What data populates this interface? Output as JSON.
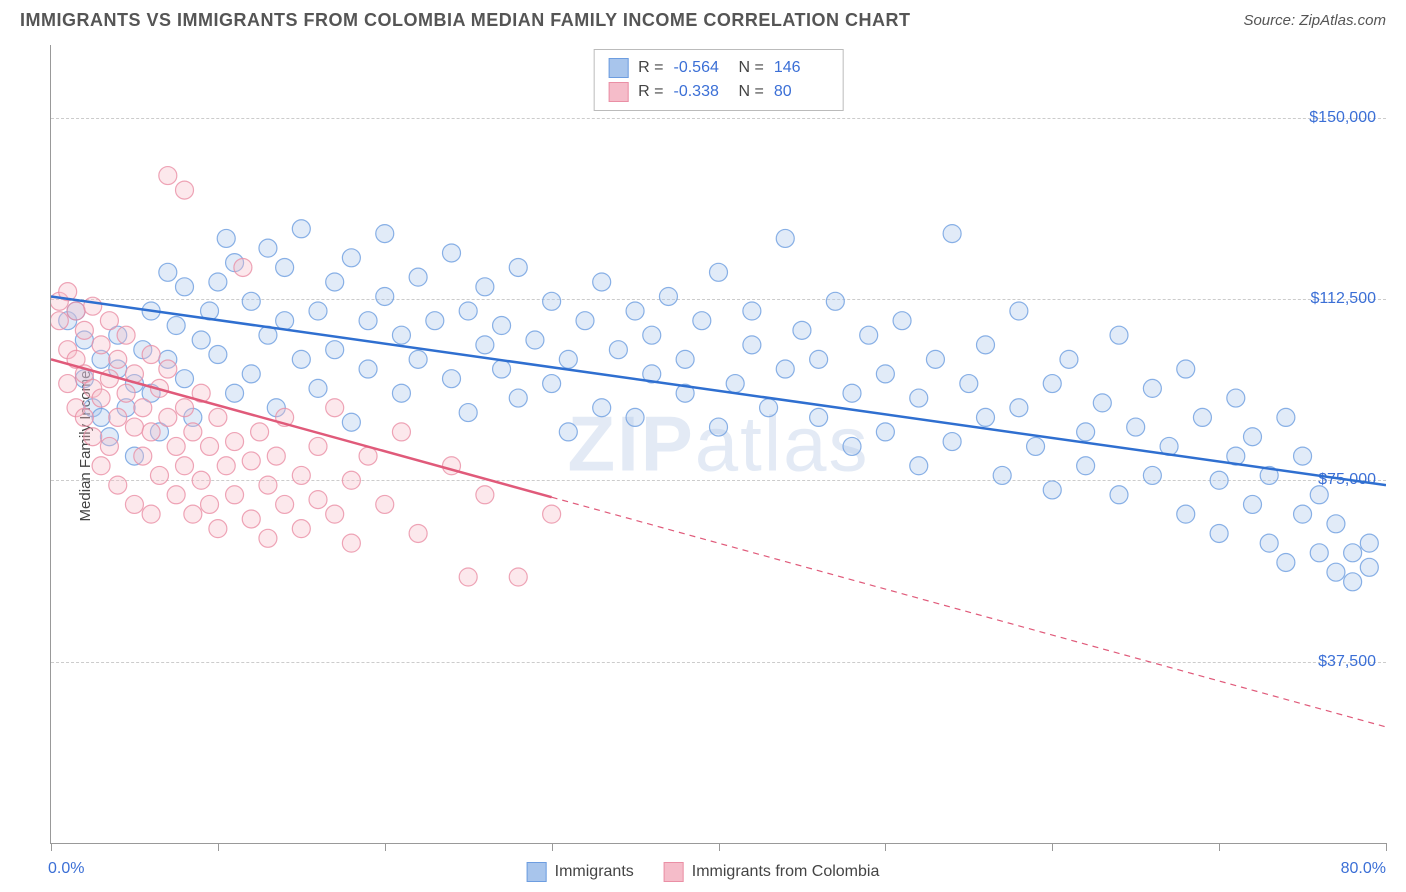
{
  "header": {
    "title": "IMMIGRANTS VS IMMIGRANTS FROM COLOMBIA MEDIAN FAMILY INCOME CORRELATION CHART",
    "source": "Source: ZipAtlas.com"
  },
  "chart": {
    "type": "scatter",
    "ylabel": "Median Family Income",
    "xlim": [
      0,
      80
    ],
    "ylim": [
      0,
      165000
    ],
    "xtick_positions": [
      0,
      10,
      20,
      30,
      40,
      50,
      60,
      70,
      80
    ],
    "xtick_labels_shown": {
      "min": "0.0%",
      "max": "80.0%"
    },
    "ytick_positions": [
      37500,
      75000,
      112500,
      150000
    ],
    "ytick_labels": [
      "$37,500",
      "$75,000",
      "$112,500",
      "$150,000"
    ],
    "grid_color": "#cccccc",
    "axis_color": "#999999",
    "background_color": "#ffffff",
    "label_color": "#3b6fd6",
    "text_color": "#555555",
    "marker_radius": 9,
    "marker_fill_opacity": 0.35,
    "marker_stroke_opacity": 0.8,
    "marker_stroke_width": 1.2,
    "line_width": 2.5,
    "series": [
      {
        "id": "immigrants",
        "label": "Immigrants",
        "color_fill": "#a8c5ec",
        "color_stroke": "#6d9de0",
        "line_color": "#2f6fd0",
        "R": "-0.564",
        "N": "146",
        "regression": {
          "x1": 0,
          "y1": 113000,
          "x2": 80,
          "y2": 74000,
          "solid_until_x": 80
        },
        "points": [
          [
            1,
            108000
          ],
          [
            1.5,
            110000
          ],
          [
            2,
            104000
          ],
          [
            2,
            96000
          ],
          [
            2.5,
            90000
          ],
          [
            3,
            88000
          ],
          [
            3,
            100000
          ],
          [
            3.5,
            84000
          ],
          [
            4,
            98000
          ],
          [
            4,
            105000
          ],
          [
            4.5,
            90000
          ],
          [
            5,
            95000
          ],
          [
            5,
            80000
          ],
          [
            5.5,
            102000
          ],
          [
            6,
            110000
          ],
          [
            6,
            93000
          ],
          [
            6.5,
            85000
          ],
          [
            7,
            118000
          ],
          [
            7,
            100000
          ],
          [
            7.5,
            107000
          ],
          [
            8,
            96000
          ],
          [
            8,
            115000
          ],
          [
            8.5,
            88000
          ],
          [
            9,
            104000
          ],
          [
            9.5,
            110000
          ],
          [
            10,
            101000
          ],
          [
            10,
            116000
          ],
          [
            10.5,
            125000
          ],
          [
            11,
            93000
          ],
          [
            11,
            120000
          ],
          [
            12,
            112000
          ],
          [
            12,
            97000
          ],
          [
            13,
            123000
          ],
          [
            13,
            105000
          ],
          [
            13.5,
            90000
          ],
          [
            14,
            108000
          ],
          [
            14,
            119000
          ],
          [
            15,
            100000
          ],
          [
            15,
            127000
          ],
          [
            16,
            110000
          ],
          [
            16,
            94000
          ],
          [
            17,
            116000
          ],
          [
            17,
            102000
          ],
          [
            18,
            121000
          ],
          [
            18,
            87000
          ],
          [
            19,
            108000
          ],
          [
            19,
            98000
          ],
          [
            20,
            113000
          ],
          [
            20,
            126000
          ],
          [
            21,
            105000
          ],
          [
            21,
            93000
          ],
          [
            22,
            117000
          ],
          [
            22,
            100000
          ],
          [
            23,
            108000
          ],
          [
            24,
            122000
          ],
          [
            24,
            96000
          ],
          [
            25,
            110000
          ],
          [
            25,
            89000
          ],
          [
            26,
            103000
          ],
          [
            26,
            115000
          ],
          [
            27,
            98000
          ],
          [
            27,
            107000
          ],
          [
            28,
            119000
          ],
          [
            28,
            92000
          ],
          [
            29,
            104000
          ],
          [
            30,
            112000
          ],
          [
            30,
            95000
          ],
          [
            31,
            100000
          ],
          [
            31,
            85000
          ],
          [
            32,
            108000
          ],
          [
            33,
            116000
          ],
          [
            33,
            90000
          ],
          [
            34,
            102000
          ],
          [
            35,
            110000
          ],
          [
            35,
            88000
          ],
          [
            36,
            97000
          ],
          [
            36,
            105000
          ],
          [
            37,
            113000
          ],
          [
            38,
            93000
          ],
          [
            38,
            100000
          ],
          [
            39,
            108000
          ],
          [
            40,
            118000
          ],
          [
            40,
            86000
          ],
          [
            41,
            95000
          ],
          [
            42,
            103000
          ],
          [
            42,
            110000
          ],
          [
            43,
            90000
          ],
          [
            44,
            98000
          ],
          [
            44,
            125000
          ],
          [
            45,
            106000
          ],
          [
            46,
            88000
          ],
          [
            46,
            100000
          ],
          [
            47,
            112000
          ],
          [
            48,
            82000
          ],
          [
            48,
            93000
          ],
          [
            49,
            105000
          ],
          [
            50,
            97000
          ],
          [
            50,
            85000
          ],
          [
            51,
            108000
          ],
          [
            52,
            78000
          ],
          [
            52,
            92000
          ],
          [
            53,
            100000
          ],
          [
            54,
            126000
          ],
          [
            54,
            83000
          ],
          [
            55,
            95000
          ],
          [
            56,
            88000
          ],
          [
            56,
            103000
          ],
          [
            57,
            76000
          ],
          [
            58,
            90000
          ],
          [
            58,
            110000
          ],
          [
            59,
            82000
          ],
          [
            60,
            95000
          ],
          [
            60,
            73000
          ],
          [
            61,
            100000
          ],
          [
            62,
            85000
          ],
          [
            62,
            78000
          ],
          [
            63,
            91000
          ],
          [
            64,
            105000
          ],
          [
            64,
            72000
          ],
          [
            65,
            86000
          ],
          [
            66,
            94000
          ],
          [
            66,
            76000
          ],
          [
            67,
            82000
          ],
          [
            68,
            98000
          ],
          [
            68,
            68000
          ],
          [
            69,
            88000
          ],
          [
            70,
            75000
          ],
          [
            70,
            64000
          ],
          [
            71,
            80000
          ],
          [
            71,
            92000
          ],
          [
            72,
            70000
          ],
          [
            72,
            84000
          ],
          [
            73,
            62000
          ],
          [
            73,
            76000
          ],
          [
            74,
            88000
          ],
          [
            74,
            58000
          ],
          [
            75,
            68000
          ],
          [
            75,
            80000
          ],
          [
            76,
            60000
          ],
          [
            76,
            72000
          ],
          [
            77,
            56000
          ],
          [
            77,
            66000
          ],
          [
            78,
            60000
          ],
          [
            78,
            54000
          ],
          [
            79,
            57000
          ],
          [
            79,
            62000
          ]
        ]
      },
      {
        "id": "immigrants_colombia",
        "label": "Immigrants from Colombia",
        "color_fill": "#f5bcc9",
        "color_stroke": "#ea8fa5",
        "line_color": "#e05a7a",
        "R": "-0.338",
        "N": "80",
        "regression": {
          "x1": 0,
          "y1": 100000,
          "x2": 80,
          "y2": 24000,
          "solid_until_x": 30
        },
        "points": [
          [
            0.5,
            112000
          ],
          [
            0.5,
            108000
          ],
          [
            1,
            114000
          ],
          [
            1,
            102000
          ],
          [
            1,
            95000
          ],
          [
            1.5,
            110000
          ],
          [
            1.5,
            100000
          ],
          [
            1.5,
            90000
          ],
          [
            2,
            106000
          ],
          [
            2,
            97000
          ],
          [
            2,
            88000
          ],
          [
            2.5,
            111000
          ],
          [
            2.5,
            94000
          ],
          [
            2.5,
            84000
          ],
          [
            3,
            103000
          ],
          [
            3,
            92000
          ],
          [
            3,
            78000
          ],
          [
            3.5,
            108000
          ],
          [
            3.5,
            96000
          ],
          [
            3.5,
            82000
          ],
          [
            4,
            100000
          ],
          [
            4,
            88000
          ],
          [
            4,
            74000
          ],
          [
            4.5,
            93000
          ],
          [
            4.5,
            105000
          ],
          [
            5,
            86000
          ],
          [
            5,
            97000
          ],
          [
            5,
            70000
          ],
          [
            5.5,
            90000
          ],
          [
            5.5,
            80000
          ],
          [
            6,
            101000
          ],
          [
            6,
            85000
          ],
          [
            6,
            68000
          ],
          [
            6.5,
            94000
          ],
          [
            6.5,
            76000
          ],
          [
            7,
            88000
          ],
          [
            7,
            98000
          ],
          [
            7,
            138000
          ],
          [
            7.5,
            82000
          ],
          [
            7.5,
            72000
          ],
          [
            8,
            90000
          ],
          [
            8,
            78000
          ],
          [
            8,
            135000
          ],
          [
            8.5,
            85000
          ],
          [
            8.5,
            68000
          ],
          [
            9,
            93000
          ],
          [
            9,
            75000
          ],
          [
            9.5,
            82000
          ],
          [
            9.5,
            70000
          ],
          [
            10,
            88000
          ],
          [
            10,
            65000
          ],
          [
            10.5,
            78000
          ],
          [
            11,
            83000
          ],
          [
            11,
            72000
          ],
          [
            11.5,
            119000
          ],
          [
            12,
            79000
          ],
          [
            12,
            67000
          ],
          [
            12.5,
            85000
          ],
          [
            13,
            74000
          ],
          [
            13,
            63000
          ],
          [
            13.5,
            80000
          ],
          [
            14,
            70000
          ],
          [
            14,
            88000
          ],
          [
            15,
            76000
          ],
          [
            15,
            65000
          ],
          [
            16,
            82000
          ],
          [
            16,
            71000
          ],
          [
            17,
            68000
          ],
          [
            17,
            90000
          ],
          [
            18,
            75000
          ],
          [
            18,
            62000
          ],
          [
            19,
            80000
          ],
          [
            20,
            70000
          ],
          [
            21,
            85000
          ],
          [
            22,
            64000
          ],
          [
            24,
            78000
          ],
          [
            25,
            55000
          ],
          [
            26,
            72000
          ],
          [
            28,
            55000
          ],
          [
            30,
            68000
          ]
        ]
      }
    ],
    "watermark": {
      "text_bold": "ZIP",
      "text_rest": "atlas"
    }
  }
}
